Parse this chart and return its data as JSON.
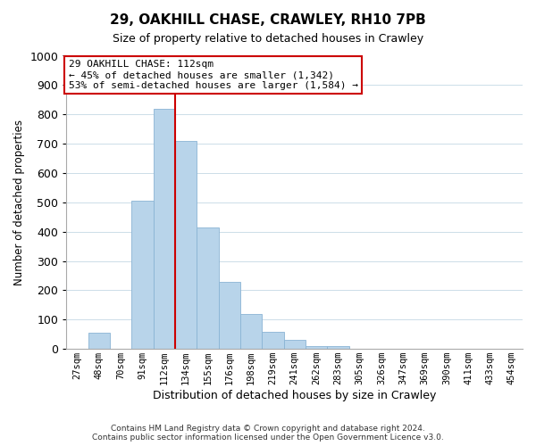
{
  "title": "29, OAKHILL CHASE, CRAWLEY, RH10 7PB",
  "subtitle": "Size of property relative to detached houses in Crawley",
  "xlabel": "Distribution of detached houses by size in Crawley",
  "ylabel": "Number of detached properties",
  "bin_labels": [
    "27sqm",
    "48sqm",
    "70sqm",
    "91sqm",
    "112sqm",
    "134sqm",
    "155sqm",
    "176sqm",
    "198sqm",
    "219sqm",
    "241sqm",
    "262sqm",
    "283sqm",
    "305sqm",
    "326sqm",
    "347sqm",
    "369sqm",
    "390sqm",
    "411sqm",
    "433sqm",
    "454sqm"
  ],
  "bar_heights": [
    0,
    55,
    0,
    505,
    820,
    710,
    415,
    230,
    118,
    57,
    32,
    10,
    10,
    0,
    0,
    0,
    0,
    0,
    0,
    0,
    0
  ],
  "bar_color": "#b8d4ea",
  "bar_edge_color": "#8ab4d4",
  "vline_x_index": 4,
  "vline_color": "#cc0000",
  "annotation_text": "29 OAKHILL CHASE: 112sqm\n← 45% of detached houses are smaller (1,342)\n53% of semi-detached houses are larger (1,584) →",
  "annotation_box_color": "#ffffff",
  "annotation_box_edge": "#cc0000",
  "ylim": [
    0,
    1000
  ],
  "yticks": [
    0,
    100,
    200,
    300,
    400,
    500,
    600,
    700,
    800,
    900,
    1000
  ],
  "footer_line1": "Contains HM Land Registry data © Crown copyright and database right 2024.",
  "footer_line2": "Contains public sector information licensed under the Open Government Licence v3.0.",
  "bg_color": "#ffffff",
  "grid_color": "#ccdde8"
}
